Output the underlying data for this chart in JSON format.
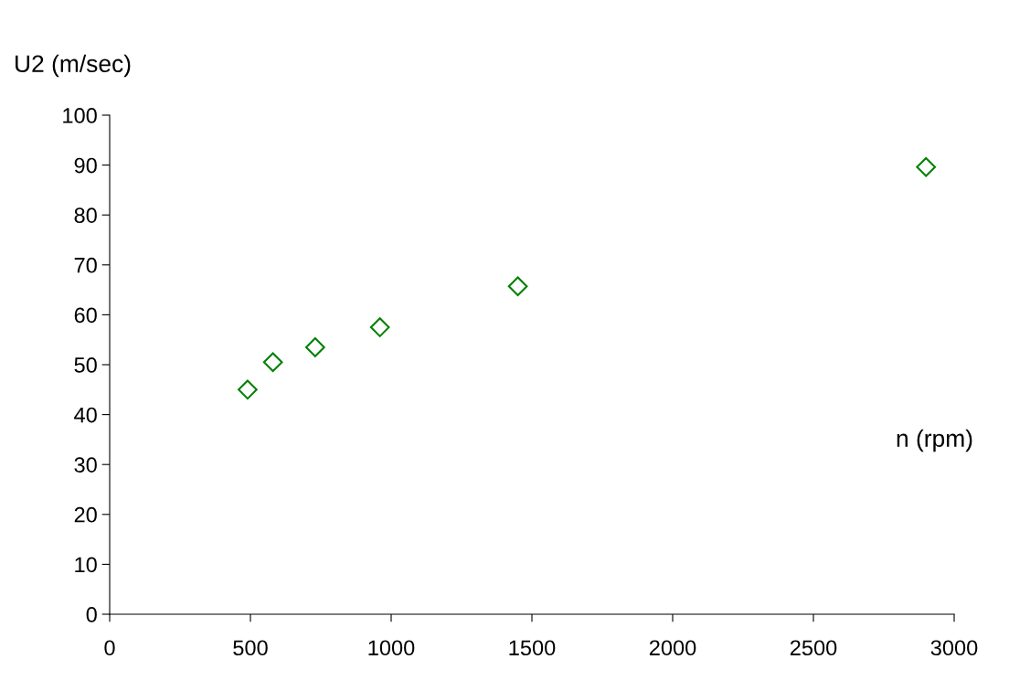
{
  "chart_data": {
    "type": "scatter",
    "xlabel": "n (rpm)",
    "ylabel": "U2 (m/sec)",
    "x": [
      490,
      580,
      730,
      960,
      1450,
      2900
    ],
    "series": [
      {
        "color": "#008000",
        "values": [
          45,
          50.5,
          53.5,
          57.5,
          65.7,
          89.6
        ]
      }
    ],
    "xlim": [
      0,
      3000
    ],
    "xticks": [
      0,
      500,
      1000,
      1500,
      2000,
      2500,
      3000
    ],
    "ylim": [
      0,
      100
    ],
    "yticks": [
      0,
      10,
      20,
      30,
      40,
      50,
      60,
      70,
      80,
      90,
      100
    ],
    "marker": "diamond",
    "grid": false,
    "legend": false
  }
}
